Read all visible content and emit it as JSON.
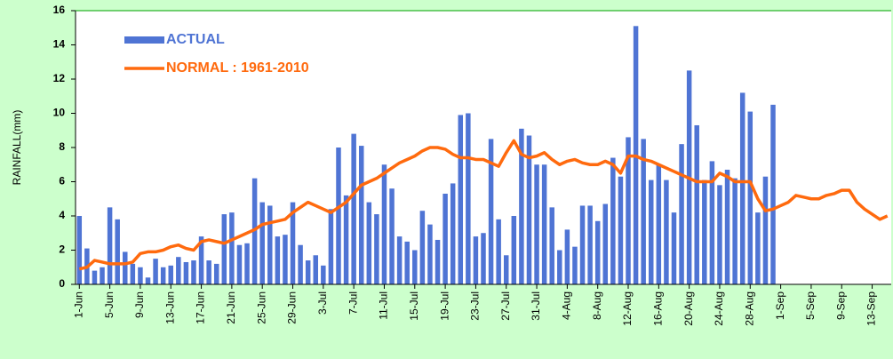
{
  "chart_data": {
    "type": "bar-line",
    "y_label": "RAINFALL(mm)",
    "categories": [
      "1-Jun",
      null,
      null,
      null,
      "5-Jun",
      null,
      null,
      null,
      "9-Jun",
      null,
      null,
      null,
      "13-Jun",
      null,
      null,
      null,
      "17-Jun",
      null,
      null,
      null,
      "21-Jun",
      null,
      null,
      null,
      "25-Jun",
      null,
      null,
      null,
      "29-Jun",
      null,
      null,
      null,
      "3-Jul",
      null,
      null,
      null,
      "7-Jul",
      null,
      null,
      null,
      "11-Jul",
      null,
      null,
      null,
      "15-Jul",
      null,
      null,
      null,
      "19-Jul",
      null,
      null,
      null,
      "23-Jul",
      null,
      null,
      null,
      "27-Jul",
      null,
      null,
      null,
      "31-Jul",
      null,
      null,
      null,
      "4-Aug",
      null,
      null,
      null,
      "8-Aug",
      null,
      null,
      null,
      "12-Aug",
      null,
      null,
      null,
      "16-Aug",
      null,
      null,
      null,
      "20-Aug",
      null,
      null,
      null,
      "24-Aug",
      null,
      null,
      null,
      "28-Aug",
      null,
      null,
      null,
      "1-Sep",
      null,
      null,
      null,
      "5-Sep",
      null,
      null,
      null,
      "9-Sep",
      null,
      null,
      null,
      "13-Sep",
      null,
      null
    ],
    "series": [
      {
        "name": "ACTUAL",
        "kind": "bar",
        "color": "#4f74d4",
        "values": [
          4.0,
          2.1,
          0.8,
          1.0,
          4.5,
          3.8,
          1.9,
          1.2,
          1.0,
          0.4,
          1.5,
          1.0,
          1.1,
          1.6,
          1.3,
          1.4,
          2.8,
          1.4,
          1.2,
          4.1,
          4.2,
          2.3,
          2.4,
          6.2,
          4.8,
          4.6,
          2.8,
          2.9,
          4.8,
          2.3,
          1.4,
          1.7,
          1.1,
          4.4,
          8.0,
          5.2,
          8.8,
          8.1,
          4.8,
          4.1,
          7.0,
          5.6,
          2.8,
          2.5,
          2.0,
          4.3,
          3.5,
          2.6,
          5.3,
          5.9,
          9.9,
          10.0,
          2.8,
          3.0,
          8.5,
          3.8,
          1.7,
          4.0,
          9.1,
          8.7,
          7.0,
          7.0,
          4.5,
          2.0,
          3.2,
          2.2,
          4.6,
          4.6,
          3.7,
          4.7,
          7.4,
          6.3,
          8.6,
          15.1,
          8.5,
          6.1,
          7.0,
          6.1,
          4.2,
          8.2,
          12.5,
          9.3,
          6.1,
          7.2,
          5.8,
          6.7,
          6.2,
          11.2,
          10.1,
          4.2,
          6.3,
          10.5,
          null,
          null,
          null,
          null,
          null,
          null,
          null,
          null,
          null,
          null,
          null,
          null,
          null,
          null,
          null
        ]
      },
      {
        "name": "NORMAL : 1961-2010",
        "kind": "line",
        "color": "#ff6a0e",
        "values": [
          0.9,
          1.0,
          1.4,
          1.3,
          1.2,
          1.2,
          1.2,
          1.3,
          1.8,
          1.9,
          1.9,
          2.0,
          2.2,
          2.3,
          2.1,
          2.0,
          2.5,
          2.6,
          2.5,
          2.4,
          2.6,
          2.8,
          3.0,
          3.2,
          3.5,
          3.6,
          3.7,
          3.8,
          4.2,
          4.5,
          4.8,
          4.6,
          4.4,
          4.2,
          4.5,
          4.8,
          5.3,
          5.8,
          6.0,
          6.2,
          6.5,
          6.8,
          7.1,
          7.3,
          7.5,
          7.8,
          8.0,
          8.0,
          7.9,
          7.6,
          7.4,
          7.4,
          7.3,
          7.3,
          7.1,
          6.9,
          7.7,
          8.4,
          7.6,
          7.4,
          7.5,
          7.7,
          7.3,
          7.0,
          7.2,
          7.3,
          7.1,
          7.0,
          7.0,
          7.2,
          7.0,
          6.5,
          7.5,
          7.5,
          7.3,
          7.2,
          7.0,
          6.8,
          6.6,
          6.4,
          6.2,
          6.0,
          6.0,
          6.0,
          6.5,
          6.3,
          6.0,
          6.0,
          6.0,
          5.0,
          4.3,
          4.4,
          4.6,
          4.8,
          5.2,
          5.1,
          5.0,
          5.0,
          5.2,
          5.3,
          5.5,
          5.5,
          4.8,
          4.4,
          4.1,
          3.8,
          4.0
        ]
      }
    ],
    "ylim": [
      0,
      16
    ],
    "yticks": [
      0,
      2,
      4,
      6,
      8,
      10,
      12,
      14,
      16
    ],
    "legend": "top-left"
  }
}
